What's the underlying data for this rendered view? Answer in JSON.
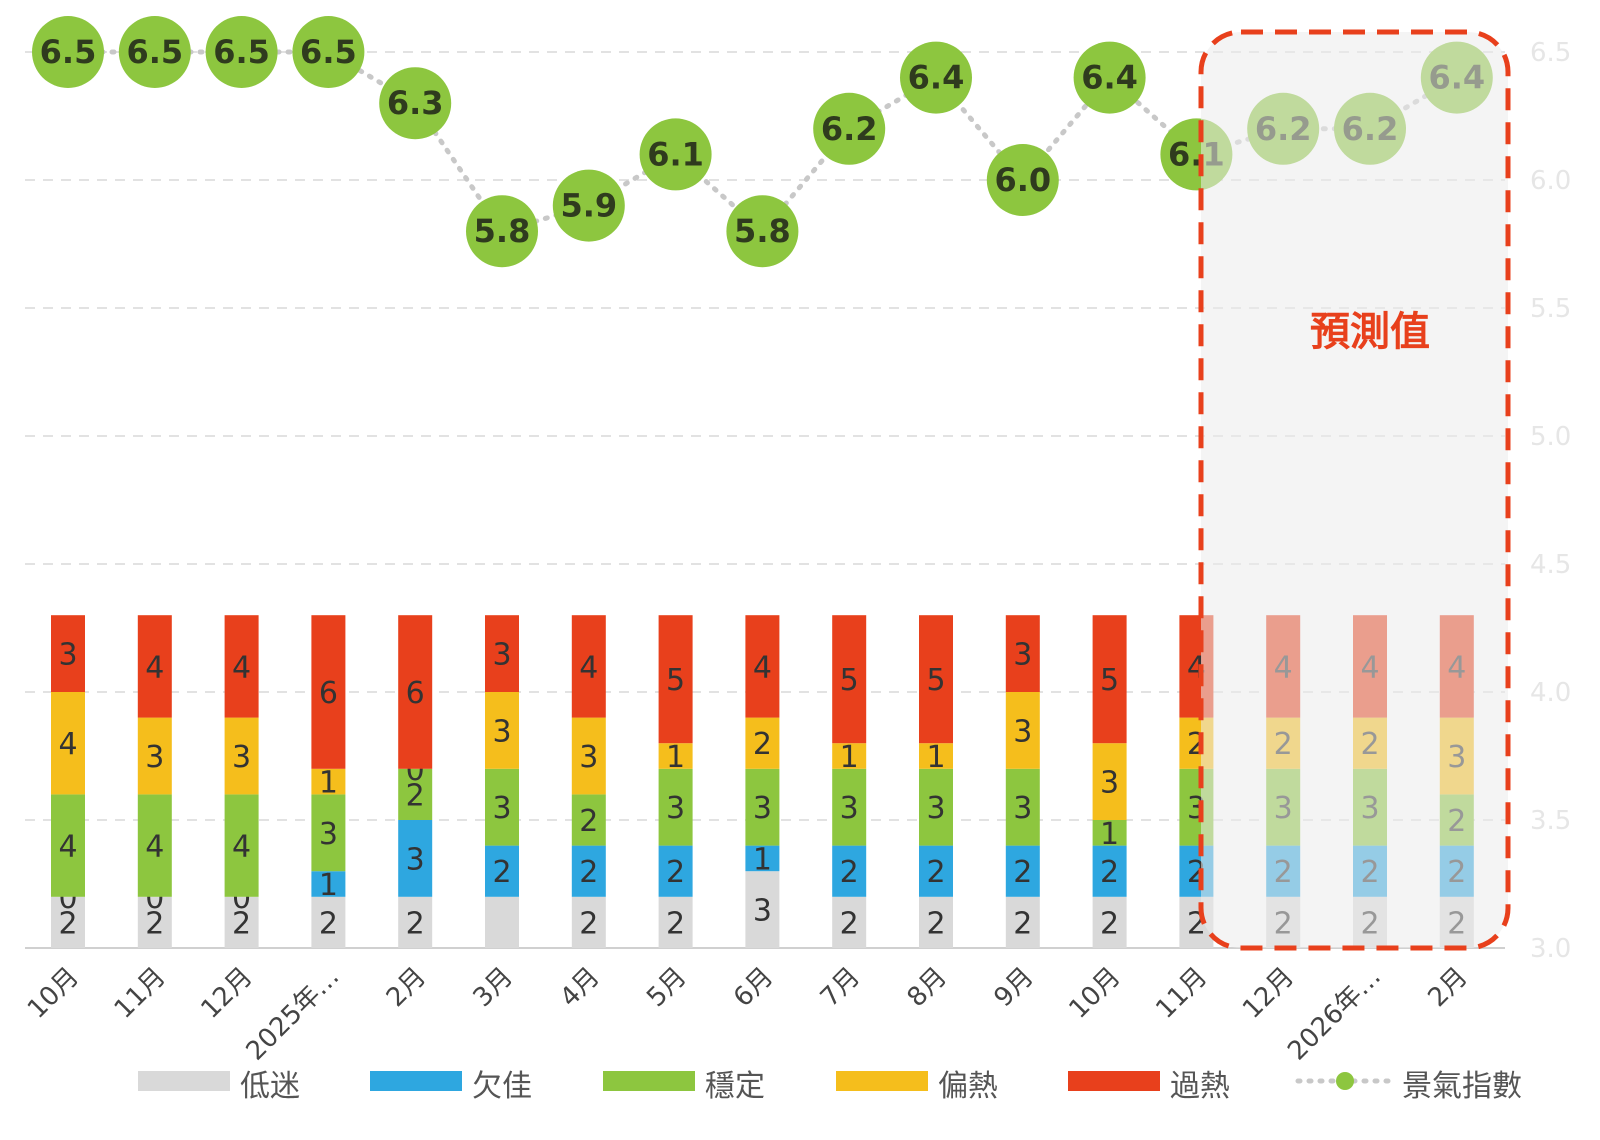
{
  "chart_data": {
    "type": "bar",
    "subtype": "stacked-bar-with-line",
    "categories": [
      "10月",
      "11月",
      "12月",
      "2025年…",
      "2月",
      "3月",
      "4月",
      "5月",
      "6月",
      "7月",
      "8月",
      "9月",
      "10月",
      "11月",
      "12月",
      "2026年…",
      "2月"
    ],
    "series": [
      {
        "name": "低迷",
        "color": "#d9d9d9",
        "values": [
          2,
          2,
          2,
          2,
          2,
          2,
          2,
          2,
          3,
          2,
          2,
          2,
          2,
          2,
          2,
          2,
          2
        ],
        "labels": [
          "2",
          "2",
          "2",
          "2",
          "2",
          "",
          "2",
          "2",
          "3",
          "2",
          "2",
          "2",
          "2",
          "2",
          "2",
          "2",
          "2"
        ]
      },
      {
        "name": "欠佳",
        "color": "#2ea7e0",
        "values": [
          0,
          0,
          0,
          1,
          3,
          2,
          2,
          2,
          1,
          2,
          2,
          2,
          2,
          2,
          2,
          2,
          2
        ]
      },
      {
        "name": "穩定",
        "color": "#8dc63f",
        "values": [
          4,
          4,
          4,
          3,
          2,
          3,
          2,
          3,
          3,
          3,
          3,
          3,
          1,
          3,
          3,
          3,
          2
        ]
      },
      {
        "name": "偏熱",
        "color": "#f5be1c",
        "values": [
          4,
          3,
          3,
          1,
          0,
          3,
          3,
          1,
          2,
          1,
          1,
          3,
          3,
          2,
          2,
          2,
          3
        ]
      },
      {
        "name": "過熱",
        "color": "#e8401c",
        "values": [
          3,
          4,
          4,
          6,
          6,
          3,
          4,
          5,
          4,
          5,
          5,
          3,
          5,
          4,
          4,
          4,
          4
        ]
      }
    ],
    "line": {
      "name": "景氣指數",
      "color": "#8dc63f",
      "values": [
        6.5,
        6.5,
        6.5,
        6.5,
        6.3,
        5.8,
        5.9,
        6.1,
        5.8,
        6.2,
        6.4,
        6.0,
        6.4,
        6.1,
        6.2,
        6.2,
        6.4
      ],
      "labels": [
        "6.5",
        "6.5",
        "6.5",
        "6.5",
        "6.3",
        "5.8",
        "5.9",
        "6.1",
        "5.8",
        "6.2",
        "6.4",
        "6.0",
        "6.4",
        "6.1",
        "6.2",
        "6.2",
        "6.4"
      ]
    },
    "y_left": {
      "range": [
        0,
        35
      ],
      "visible": false
    },
    "y_right": {
      "range": [
        3.0,
        6.5
      ],
      "ticks": [
        "3.0",
        "3.5",
        "4.0",
        "4.5",
        "5.0",
        "5.5",
        "6.0",
        "6.5"
      ]
    },
    "grid": true,
    "legend_placement": "bottom",
    "annotation": {
      "text": "預測值",
      "color": "#e8401c",
      "from_index": 14,
      "to_index": 16
    }
  }
}
